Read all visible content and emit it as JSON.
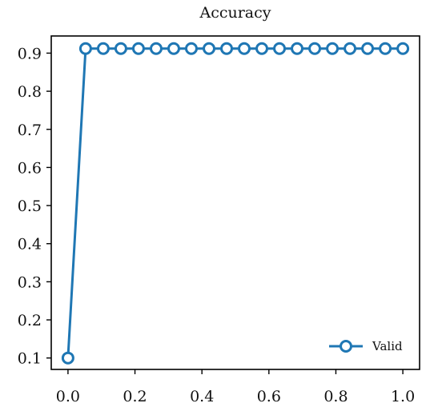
{
  "chart_data": {
    "type": "line",
    "title": "Accuracy",
    "xlabel": "",
    "ylabel": "",
    "xlim": [
      -0.05,
      1.05
    ],
    "ylim": [
      0.07,
      0.945
    ],
    "x_ticks": [
      0.0,
      0.2,
      0.4,
      0.6,
      0.8,
      1.0
    ],
    "x_tick_labels": [
      "0.0",
      "0.2",
      "0.4",
      "0.6",
      "0.8",
      "1.0"
    ],
    "y_ticks": [
      0.1,
      0.2,
      0.3,
      0.4,
      0.5,
      0.6,
      0.7,
      0.8,
      0.9
    ],
    "y_tick_labels": [
      "0.1",
      "0.2",
      "0.3",
      "0.4",
      "0.5",
      "0.6",
      "0.7",
      "0.8",
      "0.9"
    ],
    "grid": false,
    "legend_position": "bottom-right",
    "series": [
      {
        "name": "Valid",
        "color": "#1f77b4",
        "marker": "hollow-circle",
        "x": [
          0.0,
          0.0526,
          0.1053,
          0.1579,
          0.2105,
          0.2632,
          0.3158,
          0.3684,
          0.4211,
          0.4737,
          0.5263,
          0.5789,
          0.6316,
          0.6842,
          0.7368,
          0.7895,
          0.8421,
          0.8947,
          0.9474,
          1.0
        ],
        "y": [
          0.1,
          0.912,
          0.912,
          0.912,
          0.912,
          0.912,
          0.912,
          0.912,
          0.912,
          0.912,
          0.912,
          0.912,
          0.912,
          0.912,
          0.912,
          0.912,
          0.912,
          0.912,
          0.912,
          0.912
        ]
      }
    ]
  }
}
